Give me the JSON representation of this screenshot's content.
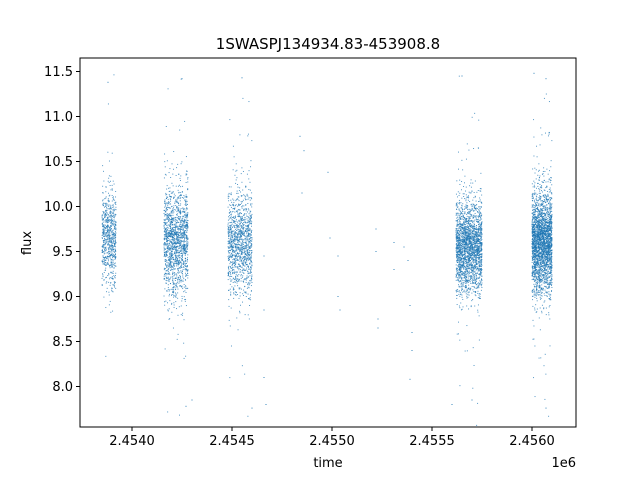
{
  "chart_data": {
    "type": "scatter",
    "title": "1SWASPJ134934.83-453908.8",
    "xlabel": "time",
    "ylabel": "flux",
    "x_offset_label": "1e6",
    "xlim": [
      2.45374,
      2.45622
    ],
    "ylim": [
      7.55,
      11.65
    ],
    "x_ticks": [
      2.454,
      2.4545,
      2.455,
      2.4555,
      2.456
    ],
    "x_tick_labels": [
      "2.4540",
      "2.4545",
      "2.4550",
      "2.4555",
      "2.4560"
    ],
    "y_ticks": [
      8.0,
      8.5,
      9.0,
      9.5,
      10.0,
      10.5,
      11.0,
      11.5
    ],
    "y_tick_labels": [
      "8.0",
      "8.5",
      "9.0",
      "9.5",
      "10.0",
      "10.5",
      "11.0",
      "11.5"
    ],
    "marker_color": "#1f77b4",
    "grid": false,
    "clusters": [
      {
        "x_range": [
          2.45385,
          2.45392
        ],
        "y_center": 9.65,
        "y_spread": 0.45,
        "count": 700
      },
      {
        "x_range": [
          2.45416,
          2.45428
        ],
        "y_center": 9.6,
        "y_spread": 0.55,
        "count": 1500
      },
      {
        "x_range": [
          2.45448,
          2.4546
        ],
        "y_center": 9.6,
        "y_spread": 0.5,
        "count": 1200
      },
      {
        "x_range": [
          2.45562,
          2.45575
        ],
        "y_center": 9.55,
        "y_spread": 0.45,
        "count": 2200
      },
      {
        "x_range": [
          2.456,
          2.4561
        ],
        "y_center": 9.6,
        "y_spread": 0.5,
        "count": 2600
      }
    ],
    "sparse_points": [
      {
        "x": 2.45484,
        "y": 10.78
      },
      {
        "x": 2.45486,
        "y": 10.62
      },
      {
        "x": 2.45485,
        "y": 10.15
      },
      {
        "x": 2.45498,
        "y": 10.38
      },
      {
        "x": 2.45499,
        "y": 9.65
      },
      {
        "x": 2.45503,
        "y": 9.45
      },
      {
        "x": 2.45503,
        "y": 9.0
      },
      {
        "x": 2.45504,
        "y": 8.85
      },
      {
        "x": 2.45522,
        "y": 9.75
      },
      {
        "x": 2.45522,
        "y": 9.5
      },
      {
        "x": 2.45523,
        "y": 8.75
      },
      {
        "x": 2.45523,
        "y": 8.65
      },
      {
        "x": 2.45531,
        "y": 9.6
      },
      {
        "x": 2.45531,
        "y": 9.3
      },
      {
        "x": 2.45536,
        "y": 9.55
      },
      {
        "x": 2.45538,
        "y": 9.4
      },
      {
        "x": 2.45539,
        "y": 8.9
      },
      {
        "x": 2.4554,
        "y": 8.6
      },
      {
        "x": 2.4554,
        "y": 8.4
      },
      {
        "x": 2.45539,
        "y": 8.08
      },
      {
        "x": 2.45466,
        "y": 9.45
      },
      {
        "x": 2.45466,
        "y": 8.85
      },
      {
        "x": 2.45466,
        "y": 8.1
      },
      {
        "x": 2.45467,
        "y": 7.8
      },
      {
        "x": 2.45388,
        "y": 11.38
      },
      {
        "x": 2.45425,
        "y": 11.42
      },
      {
        "x": 2.45455,
        "y": 11.43
      },
      {
        "x": 2.45565,
        "y": 11.45
      },
      {
        "x": 2.45601,
        "y": 11.48
      },
      {
        "x": 2.45607,
        "y": 11.42
      },
      {
        "x": 2.45427,
        "y": 7.78
      },
      {
        "x": 2.4543,
        "y": 7.85
      },
      {
        "x": 2.4546,
        "y": 7.76
      },
      {
        "x": 2.4556,
        "y": 7.8
      },
      {
        "x": 2.4557,
        "y": 7.85
      },
      {
        "x": 2.45607,
        "y": 7.76
      }
    ]
  }
}
